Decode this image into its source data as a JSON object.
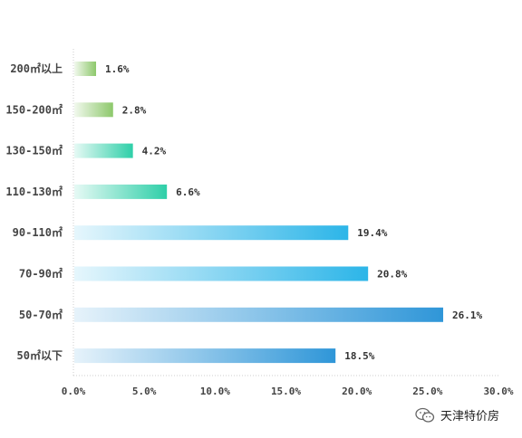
{
  "chart_data": {
    "type": "bar",
    "orientation": "horizontal",
    "categories": [
      "200㎡以上",
      "150-200㎡",
      "130-150㎡",
      "110-130㎡",
      "90-110㎡",
      "70-90㎡",
      "50-70㎡",
      "50㎡以下"
    ],
    "values": [
      1.6,
      2.8,
      4.2,
      6.6,
      19.4,
      20.8,
      26.1,
      18.5
    ],
    "value_labels": [
      "1.6%",
      "2.8%",
      "4.2%",
      "6.6%",
      "19.4%",
      "20.8%",
      "26.1%",
      "18.5%"
    ],
    "xlim": [
      0,
      30
    ],
    "x_ticks": [
      "0.0%",
      "5.0%",
      "10.0%",
      "15.0%",
      "20.0%",
      "25.0%",
      "30.0%"
    ],
    "grid": false,
    "colors": {
      "bar_end": [
        "#8dc86b",
        "#8dc86b",
        "#2ecfa8",
        "#2ecfa8",
        "#2cb5e8",
        "#2cb5e8",
        "#2f96d8",
        "#2f96d8"
      ],
      "axis": "#cccccc"
    }
  },
  "watermark": {
    "text": "天津特价房",
    "icon": "wechat-icon"
  }
}
